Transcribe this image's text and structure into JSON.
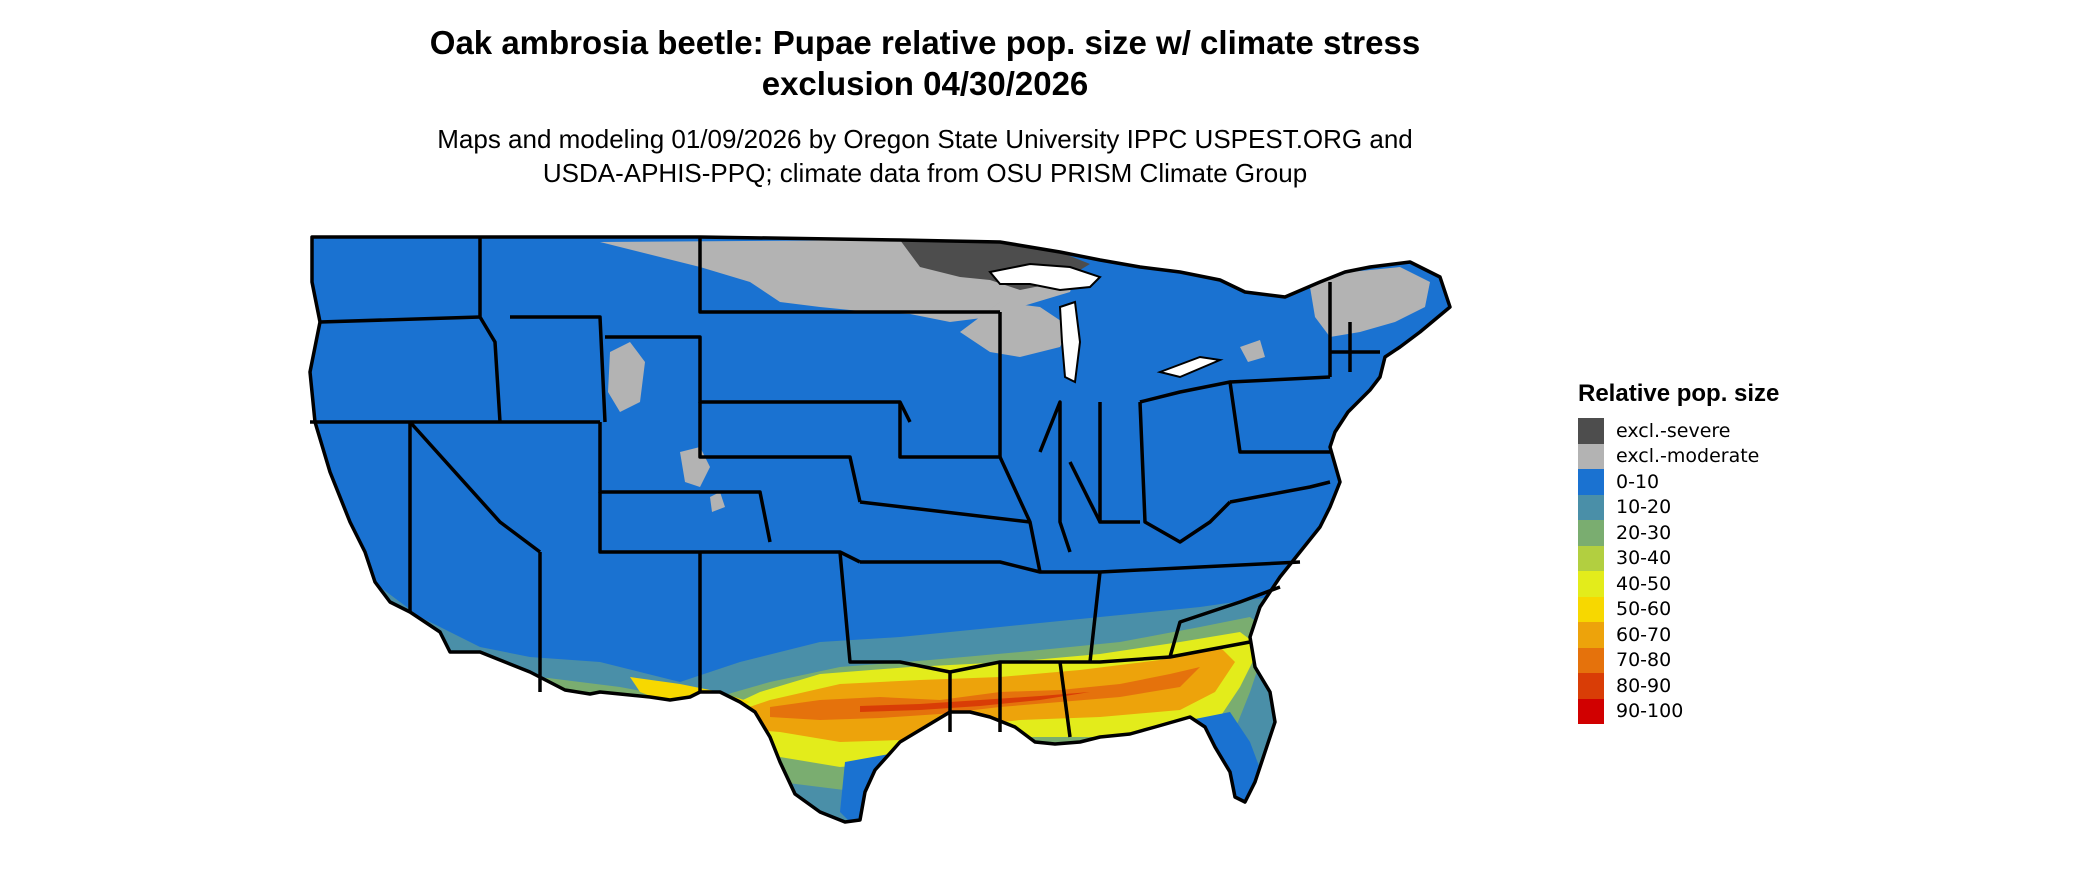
{
  "title_line1": "Oak ambrosia beetle: Pupae relative pop. size w/ climate stress",
  "title_line2": "exclusion 04/30/2026",
  "subtitle_line1": "Maps and modeling 01/09/2026 by Oregon State University IPPC USPEST.ORG and",
  "subtitle_line2": "USDA-APHIS-PPQ; climate data from OSU PRISM Climate Group",
  "legend": {
    "title": "Relative pop. size",
    "items": [
      {
        "label": "excl.-severe",
        "color": "#4d4d4d"
      },
      {
        "label": "excl.-moderate",
        "color": "#b3b3b3"
      },
      {
        "label": "0-10",
        "color": "#1a72d1"
      },
      {
        "label": "10-20",
        "color": "#4a8fa8"
      },
      {
        "label": "20-30",
        "color": "#7aad70"
      },
      {
        "label": "30-40",
        "color": "#b2cf40"
      },
      {
        "label": "40-50",
        "color": "#e3ec1b"
      },
      {
        "label": "50-60",
        "color": "#f7d800"
      },
      {
        "label": "60-70",
        "color": "#eda30b"
      },
      {
        "label": "70-80",
        "color": "#e5720c"
      },
      {
        "label": "80-90",
        "color": "#d93d06"
      },
      {
        "label": "90-100",
        "color": "#d10000"
      }
    ]
  }
}
